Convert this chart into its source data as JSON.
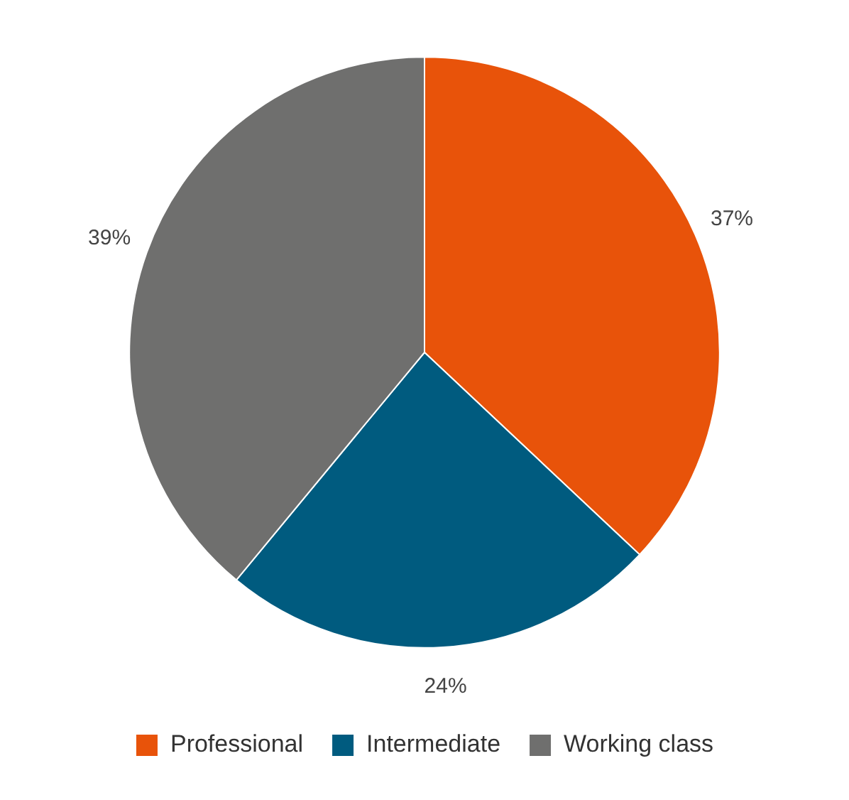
{
  "chart_data": {
    "type": "pie",
    "categories": [
      "Professional",
      "Intermediate",
      "Working class"
    ],
    "values": [
      37,
      24,
      39
    ],
    "colors": [
      "#e8530a",
      "#005b7f",
      "#6f6f6e"
    ],
    "value_labels": [
      "37%",
      "24%",
      "39%"
    ],
    "legend": "bottom"
  }
}
